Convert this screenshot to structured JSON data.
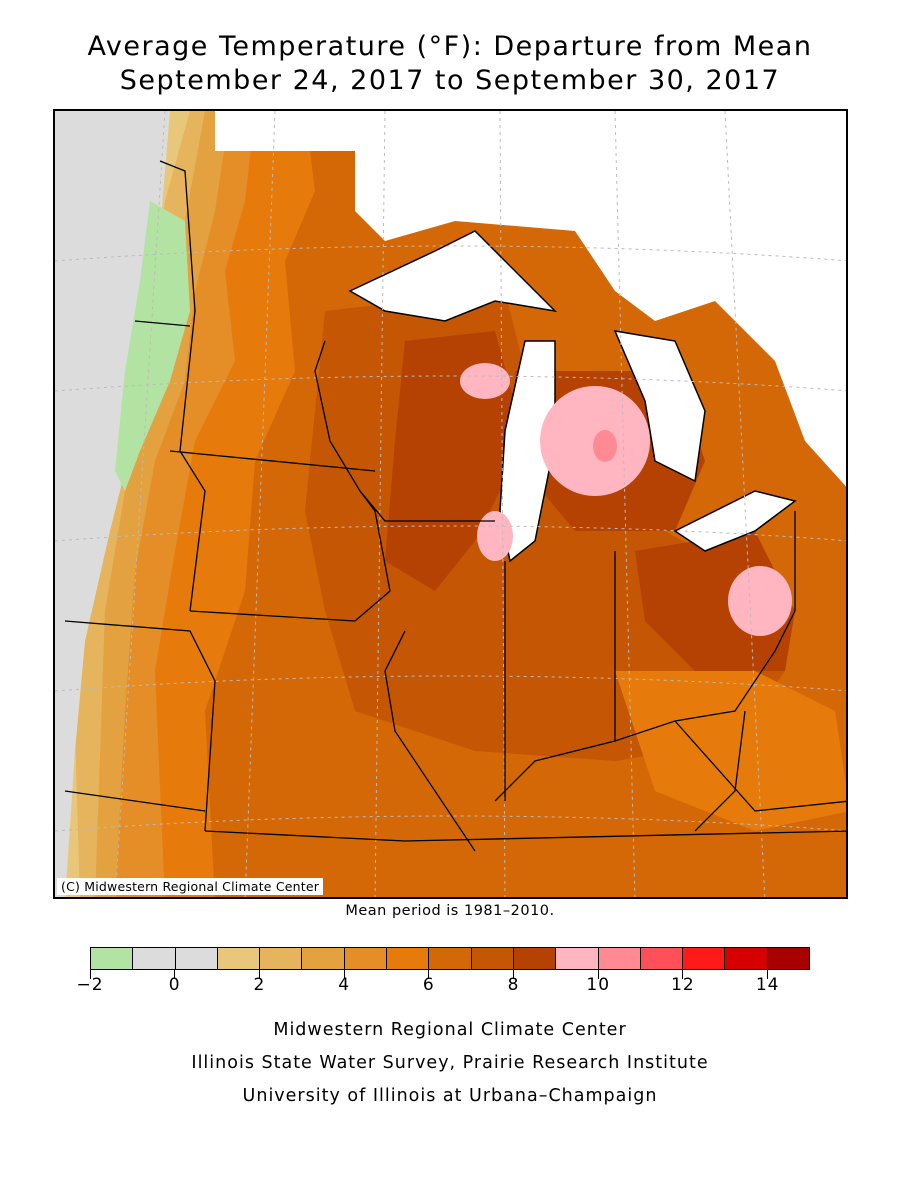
{
  "title": {
    "line1": "Average Temperature (°F): Departure from Mean",
    "line2": "September 24, 2017 to September 30, 2017"
  },
  "map": {
    "copyright": "(C) Midwestern Regional Climate Center",
    "note": "Mean period is 1981–2010."
  },
  "legend": {
    "bins": [
      {
        "from": -2,
        "to": -1,
        "color": "#b3e3a3"
      },
      {
        "from": -1,
        "to": 0,
        "color": "#dcdcdc"
      },
      {
        "from": 0,
        "to": 1,
        "color": "#dcdcdc"
      },
      {
        "from": 1,
        "to": 2,
        "color": "#e8c77a"
      },
      {
        "from": 2,
        "to": 3,
        "color": "#e5b45c"
      },
      {
        "from": 3,
        "to": 4,
        "color": "#e4a13f"
      },
      {
        "from": 4,
        "to": 5,
        "color": "#e58d27"
      },
      {
        "from": 5,
        "to": 6,
        "color": "#e67b0c"
      },
      {
        "from": 6,
        "to": 7,
        "color": "#d46806"
      },
      {
        "from": 7,
        "to": 8,
        "color": "#c45604"
      },
      {
        "from": 8,
        "to": 9,
        "color": "#b54202"
      },
      {
        "from": 9,
        "to": 10,
        "color": "#ffb6c1"
      },
      {
        "from": 10,
        "to": 11,
        "color": "#ff8a93"
      },
      {
        "from": 11,
        "to": 12,
        "color": "#ff505a"
      },
      {
        "from": 12,
        "to": 13,
        "color": "#ff1a1a"
      },
      {
        "from": 13,
        "to": 14,
        "color": "#d60000"
      },
      {
        "from": 14,
        "to": 15,
        "color": "#a80000"
      }
    ],
    "tick_labels": [
      "−2",
      "0",
      "2",
      "4",
      "6",
      "8",
      "10",
      "12",
      "14"
    ],
    "tick_values": [
      -2,
      0,
      2,
      4,
      6,
      8,
      10,
      12,
      14
    ],
    "min": -2,
    "max": 15
  },
  "footer": {
    "line1": "Midwestern Regional Climate Center",
    "line2": "Illinois State Water Survey, Prairie Research Institute",
    "line3": "University of Illinois at Urbana–Champaign"
  }
}
